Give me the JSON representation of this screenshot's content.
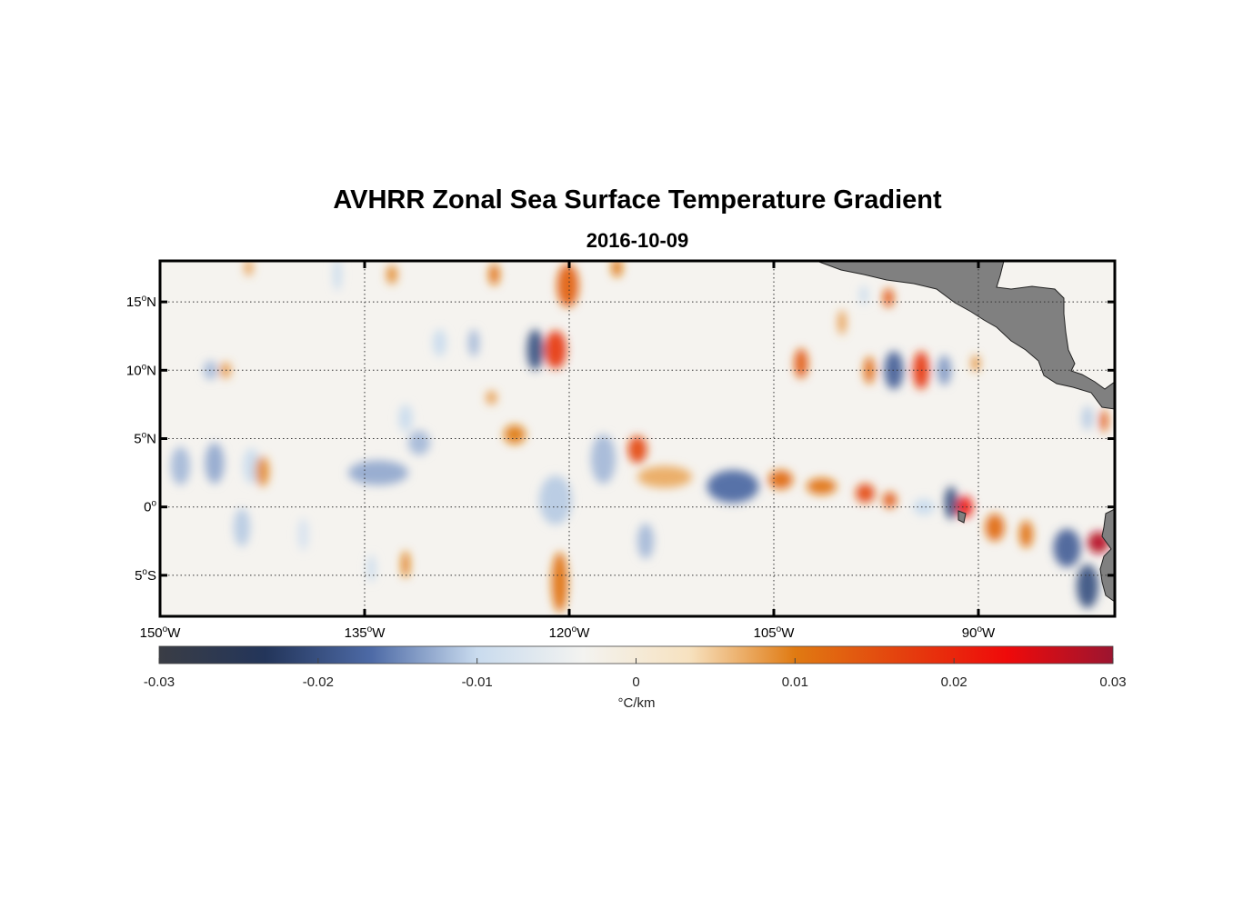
{
  "chart_data": {
    "type": "heatmap",
    "title": "AVHRR Zonal Sea Surface Temperature Gradient",
    "subtitle": "2016-10-09",
    "x_ticks": [
      {
        "value": -150,
        "label": "150",
        "hemi": "W"
      },
      {
        "value": -135,
        "label": "135",
        "hemi": "W"
      },
      {
        "value": -120,
        "label": "120",
        "hemi": "W"
      },
      {
        "value": -105,
        "label": "105",
        "hemi": "W"
      },
      {
        "value": -90,
        "label": "90",
        "hemi": "W"
      }
    ],
    "y_ticks": [
      {
        "value": 15,
        "label": "15",
        "hemi": "N"
      },
      {
        "value": 10,
        "label": "10",
        "hemi": "N"
      },
      {
        "value": 5,
        "label": "5",
        "hemi": "N"
      },
      {
        "value": 0,
        "label": "0",
        "hemi": ""
      },
      {
        "value": -5,
        "label": "5",
        "hemi": "S"
      }
    ],
    "xlim": [
      -150,
      -80
    ],
    "ylim": [
      -8,
      18
    ],
    "grid": true,
    "colorbar": {
      "range": [
        -0.03,
        0.03
      ],
      "ticks": [
        {
          "value": -0.03,
          "label": "-0.03"
        },
        {
          "value": -0.02,
          "label": "-0.02"
        },
        {
          "value": -0.01,
          "label": "-0.01"
        },
        {
          "value": 0,
          "label": "0"
        },
        {
          "value": 0.01,
          "label": "0.01"
        },
        {
          "value": 0.02,
          "label": "0.02"
        },
        {
          "value": 0.03,
          "label": "0.03"
        }
      ],
      "label": "°C/km",
      "colors": [
        "#3a3d45",
        "#23355a",
        "#4d6aa6",
        "#c9dbee",
        "#f3f3f0",
        "#f7e2c0",
        "#e07a12",
        "#e4410e",
        "#ef0a0a",
        "#9c1530"
      ]
    },
    "land_color": "#808080",
    "features": [
      {
        "lon": -148.5,
        "lat": 3.0,
        "value": -0.012,
        "rx": 0.7,
        "ry": 1.4
      },
      {
        "lon": -146.0,
        "lat": 3.2,
        "value": -0.013,
        "rx": 0.7,
        "ry": 1.5
      },
      {
        "lon": -143.3,
        "lat": 3.0,
        "value": -0.01,
        "rx": 0.6,
        "ry": 1.3
      },
      {
        "lon": -142.5,
        "lat": 2.6,
        "value": 0.009,
        "rx": 0.5,
        "ry": 1.1
      },
      {
        "lon": -146.3,
        "lat": 10.0,
        "value": -0.012,
        "rx": 0.5,
        "ry": 0.7
      },
      {
        "lon": -145.2,
        "lat": 10.0,
        "value": 0.008,
        "rx": 0.4,
        "ry": 0.6
      },
      {
        "lon": -144.0,
        "lat": -1.5,
        "value": -0.011,
        "rx": 0.6,
        "ry": 1.4
      },
      {
        "lon": -134.0,
        "lat": 2.5,
        "value": -0.013,
        "rx": 2.2,
        "ry": 0.9
      },
      {
        "lon": -131.0,
        "lat": 4.7,
        "value": -0.012,
        "rx": 0.8,
        "ry": 0.9
      },
      {
        "lon": -132.0,
        "lat": 6.5,
        "value": -0.01,
        "rx": 0.5,
        "ry": 1.0
      },
      {
        "lon": -129.5,
        "lat": 12.0,
        "value": -0.01,
        "rx": 0.5,
        "ry": 1.0
      },
      {
        "lon": -127.0,
        "lat": 12.0,
        "value": -0.012,
        "rx": 0.4,
        "ry": 1.0
      },
      {
        "lon": -122.5,
        "lat": 11.5,
        "value": -0.02,
        "rx": 0.6,
        "ry": 1.5
      },
      {
        "lon": -121.0,
        "lat": 11.5,
        "value": 0.018,
        "rx": 0.8,
        "ry": 1.4
      },
      {
        "lon": -120.1,
        "lat": 16.2,
        "value": 0.013,
        "rx": 0.8,
        "ry": 1.6
      },
      {
        "lon": -124.0,
        "lat": 5.3,
        "value": 0.01,
        "rx": 0.8,
        "ry": 0.7
      },
      {
        "lon": -125.7,
        "lat": 8.0,
        "value": 0.008,
        "rx": 0.4,
        "ry": 0.5
      },
      {
        "lon": -121.0,
        "lat": 0.5,
        "value": -0.011,
        "rx": 1.2,
        "ry": 1.8
      },
      {
        "lon": -117.5,
        "lat": 3.5,
        "value": -0.012,
        "rx": 0.9,
        "ry": 1.8
      },
      {
        "lon": -115.0,
        "lat": 4.2,
        "value": 0.016,
        "rx": 0.7,
        "ry": 1.0
      },
      {
        "lon": -113.0,
        "lat": 2.2,
        "value": 0.007,
        "rx": 2.0,
        "ry": 0.8
      },
      {
        "lon": -120.7,
        "lat": -5.5,
        "value": 0.011,
        "rx": 0.6,
        "ry": 2.2
      },
      {
        "lon": -114.4,
        "lat": -2.5,
        "value": -0.012,
        "rx": 0.6,
        "ry": 1.3
      },
      {
        "lon": -116.5,
        "lat": 17.5,
        "value": 0.01,
        "rx": 0.4,
        "ry": 0.7
      },
      {
        "lon": -108.0,
        "lat": 1.5,
        "value": -0.017,
        "rx": 1.9,
        "ry": 1.2
      },
      {
        "lon": -104.5,
        "lat": 2.0,
        "value": 0.012,
        "rx": 0.9,
        "ry": 0.7
      },
      {
        "lon": -101.5,
        "lat": 1.5,
        "value": 0.011,
        "rx": 1.1,
        "ry": 0.6
      },
      {
        "lon": -98.3,
        "lat": 1.0,
        "value": 0.016,
        "rx": 0.7,
        "ry": 0.7
      },
      {
        "lon": -96.5,
        "lat": 0.5,
        "value": 0.014,
        "rx": 0.5,
        "ry": 0.6
      },
      {
        "lon": -94.0,
        "lat": 0.0,
        "value": -0.01,
        "rx": 0.8,
        "ry": 0.6
      },
      {
        "lon": -92.0,
        "lat": 0.3,
        "value": -0.02,
        "rx": 0.5,
        "ry": 1.2
      },
      {
        "lon": -91.0,
        "lat": 0.0,
        "value": 0.022,
        "rx": 0.6,
        "ry": 0.8
      },
      {
        "lon": -88.8,
        "lat": -1.5,
        "value": 0.012,
        "rx": 0.7,
        "ry": 1.0
      },
      {
        "lon": -86.5,
        "lat": -2.0,
        "value": 0.011,
        "rx": 0.5,
        "ry": 1.0
      },
      {
        "lon": -83.5,
        "lat": -3.0,
        "value": -0.018,
        "rx": 1.0,
        "ry": 1.4
      },
      {
        "lon": -82.0,
        "lat": -5.8,
        "value": -0.02,
        "rx": 0.8,
        "ry": 1.6
      },
      {
        "lon": -81.2,
        "lat": -2.6,
        "value": 0.028,
        "rx": 0.8,
        "ry": 0.8
      },
      {
        "lon": -103.0,
        "lat": 10.5,
        "value": 0.014,
        "rx": 0.5,
        "ry": 1.1
      },
      {
        "lon": -98.0,
        "lat": 10.0,
        "value": 0.012,
        "rx": 0.4,
        "ry": 1.0
      },
      {
        "lon": -96.2,
        "lat": 10.0,
        "value": -0.018,
        "rx": 0.7,
        "ry": 1.4
      },
      {
        "lon": -94.2,
        "lat": 10.0,
        "value": 0.018,
        "rx": 0.6,
        "ry": 1.4
      },
      {
        "lon": -92.5,
        "lat": 10.0,
        "value": -0.014,
        "rx": 0.5,
        "ry": 1.1
      },
      {
        "lon": -90.2,
        "lat": 10.5,
        "value": 0.009,
        "rx": 0.3,
        "ry": 0.6
      },
      {
        "lon": -96.6,
        "lat": 15.3,
        "value": 0.014,
        "rx": 0.4,
        "ry": 0.7
      },
      {
        "lon": -98.4,
        "lat": 15.5,
        "value": -0.01,
        "rx": 0.3,
        "ry": 0.7
      },
      {
        "lon": -100.0,
        "lat": 13.5,
        "value": 0.008,
        "rx": 0.3,
        "ry": 0.9
      },
      {
        "lon": -82.0,
        "lat": 6.5,
        "value": -0.011,
        "rx": 0.4,
        "ry": 0.9
      },
      {
        "lon": -80.8,
        "lat": 6.3,
        "value": 0.014,
        "rx": 0.3,
        "ry": 0.8
      },
      {
        "lon": -143.5,
        "lat": 17.5,
        "value": 0.008,
        "rx": 0.3,
        "ry": 0.6
      },
      {
        "lon": -137.0,
        "lat": 17.0,
        "value": -0.01,
        "rx": 0.3,
        "ry": 1.2
      },
      {
        "lon": -133.0,
        "lat": 17.0,
        "value": 0.009,
        "rx": 0.4,
        "ry": 0.7
      },
      {
        "lon": -125.5,
        "lat": 17.0,
        "value": 0.011,
        "rx": 0.4,
        "ry": 0.8
      },
      {
        "lon": -132.0,
        "lat": -4.2,
        "value": 0.01,
        "rx": 0.3,
        "ry": 1.0
      },
      {
        "lon": -134.5,
        "lat": -4.5,
        "value": -0.01,
        "rx": 0.3,
        "ry": 1.0
      },
      {
        "lon": -139.5,
        "lat": -2.0,
        "value": -0.008,
        "rx": 0.4,
        "ry": 1.2
      }
    ]
  }
}
